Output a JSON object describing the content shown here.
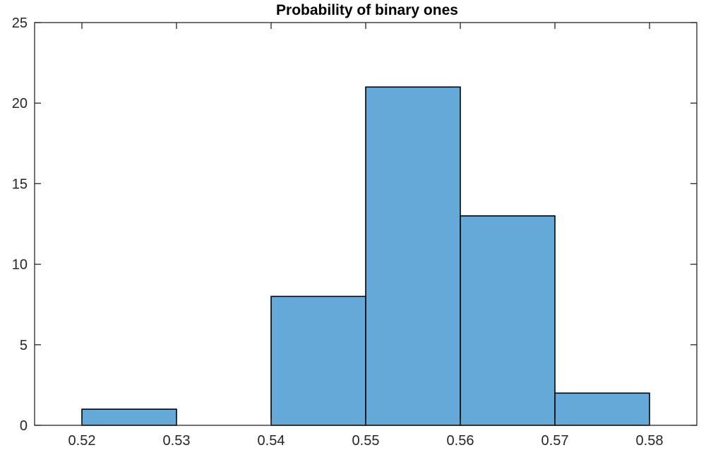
{
  "chart_data": {
    "type": "bar",
    "title": "Probability of binary ones",
    "xlabel": "",
    "ylabel": "",
    "xlim": [
      0.515,
      0.585
    ],
    "ylim": [
      0,
      25
    ],
    "grid": false,
    "bin_edges": [
      0.52,
      0.53,
      0.54,
      0.55,
      0.56,
      0.57,
      0.58
    ],
    "values": [
      1,
      0,
      8,
      21,
      13,
      2
    ],
    "x_ticks": [
      0.52,
      0.53,
      0.54,
      0.55,
      0.56,
      0.57,
      0.58
    ],
    "x_tick_labels": [
      "0.52",
      "0.53",
      "0.54",
      "0.55",
      "0.56",
      "0.57",
      "0.58"
    ],
    "y_ticks": [
      0,
      5,
      10,
      15,
      20,
      25
    ],
    "y_tick_labels": [
      "0",
      "5",
      "10",
      "15",
      "20",
      "25"
    ],
    "colors": {
      "bar_fill": "#65a9d8",
      "bar_edge": "#000000",
      "axis": "#262626"
    }
  }
}
